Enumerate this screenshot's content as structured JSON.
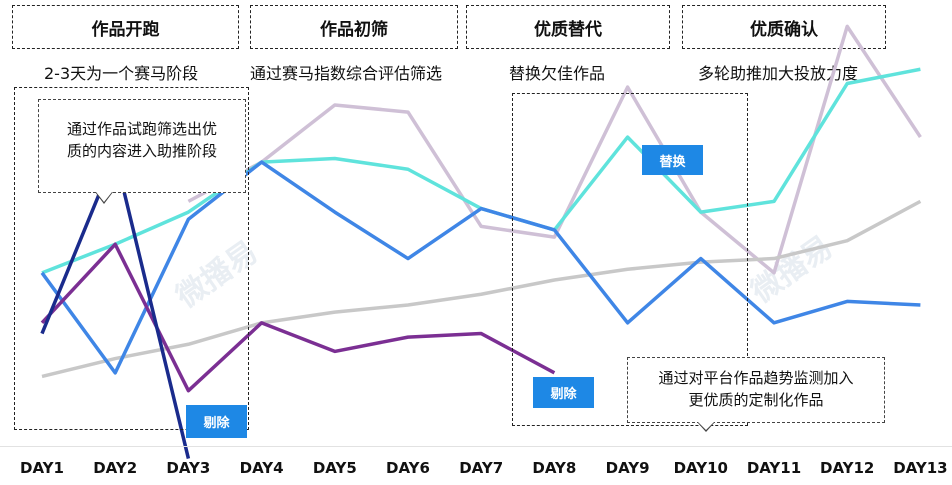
{
  "stages": [
    {
      "title": "作品开跑",
      "desc": "2-3天为一个赛马阶段"
    },
    {
      "title": "作品初筛",
      "desc": "通过赛马指数综合评估筛选"
    },
    {
      "title": "优质替代",
      "desc": "替换欠佳作品"
    },
    {
      "title": "优质确认",
      "desc": "多轮助推加大投放力度"
    }
  ],
  "callouts": {
    "left": {
      "line1": "通过作品试跑筛选出优",
      "line2": "质的内容进入助推阶段"
    },
    "bottom": {
      "line1": "通过对平台作品趋势监测加入",
      "line2": "更优质的定制化作品"
    }
  },
  "tags": {
    "remove": "剔除",
    "replace": "替换"
  },
  "watermark": "微播易",
  "chart_data": {
    "type": "line",
    "categories": [
      "DAY1",
      "DAY2",
      "DAY3",
      "DAY4",
      "DAY5",
      "DAY6",
      "DAY7",
      "DAY8",
      "DAY9",
      "DAY10",
      "DAY11",
      "DAY12",
      "DAY13"
    ],
    "ylim": [
      0,
      100
    ],
    "grid": false,
    "series": [
      {
        "color": "#cfc0d6",
        "values": [
          null,
          null,
          64,
          75,
          91,
          89,
          57,
          54,
          96,
          61,
          44,
          113,
          82
        ]
      },
      {
        "color": "#5fe3dc",
        "values": [
          44,
          52,
          61,
          75,
          76,
          73,
          62,
          56,
          82,
          61,
          64,
          97,
          101
        ]
      },
      {
        "color": "#c8c8c8",
        "values": [
          15,
          20,
          24,
          30,
          33,
          35,
          38,
          42,
          45,
          47,
          48,
          53,
          64
        ]
      },
      {
        "color": "#3f86e6",
        "values": [
          44,
          16,
          59,
          75,
          61,
          48,
          62,
          56,
          30,
          48,
          30,
          36,
          35
        ]
      },
      {
        "color": "#7b2f93",
        "values": [
          30,
          52,
          11,
          30,
          22,
          26,
          27,
          16,
          null,
          null,
          null,
          null,
          null
        ]
      },
      {
        "color": "#1a2b8c",
        "values": [
          27,
          77,
          -8,
          null,
          null,
          null,
          null,
          null,
          null,
          null,
          null,
          null,
          null
        ]
      }
    ]
  }
}
